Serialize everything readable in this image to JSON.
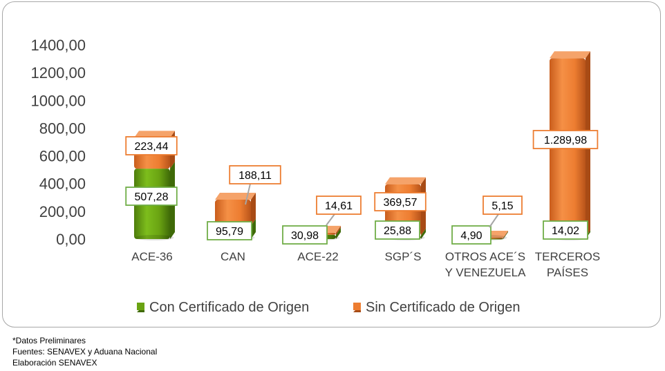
{
  "chart_data": {
    "type": "bar",
    "stacked": true,
    "style": "3d-cylinder",
    "categories": [
      "ACE-36",
      "CAN",
      "ACE-22",
      "SGP´S",
      "OTROS ACE´S Y VENEZUELA",
      "TERCEROS PAÍSES"
    ],
    "category_lines": [
      [
        "ACE-36"
      ],
      [
        "CAN"
      ],
      [
        "ACE-22"
      ],
      [
        "SGP´S"
      ],
      [
        "OTROS ACE´S",
        "Y VENEZUELA"
      ],
      [
        "TERCEROS",
        "PAÍSES"
      ]
    ],
    "series": [
      {
        "name": "Con Certificado de Origen",
        "color": "#6aa312",
        "values": [
          507.28,
          95.79,
          30.98,
          25.88,
          4.9,
          14.02
        ],
        "labels": [
          "507,28",
          "95,79",
          "30,98",
          "25,88",
          "4,90",
          "14,02"
        ]
      },
      {
        "name": "Sin Certificado de Origen",
        "color": "#ed7d31",
        "values": [
          223.44,
          188.11,
          14.61,
          369.57,
          5.15,
          1289.98
        ],
        "labels": [
          "223,44",
          "188,11",
          "14,61",
          "369,57",
          "5,15",
          "1.289,98"
        ]
      }
    ],
    "ylim": [
      0,
      1400
    ],
    "yticks": [
      0,
      200,
      400,
      600,
      800,
      1000,
      1200,
      1400
    ],
    "ytick_labels": [
      "0,00",
      "200,00",
      "400,00",
      "600,00",
      "800,00",
      "1000,00",
      "1200,00",
      "1400,00"
    ],
    "grid": false,
    "legend": "bottom",
    "title": "",
    "xlabel": "",
    "ylabel": ""
  },
  "footnotes": {
    "line1": "*Datos Preliminares",
    "line2": "Fuentes: SENAVEX y Aduana Nacional",
    "line3": "Elaboración SENAVEX"
  }
}
